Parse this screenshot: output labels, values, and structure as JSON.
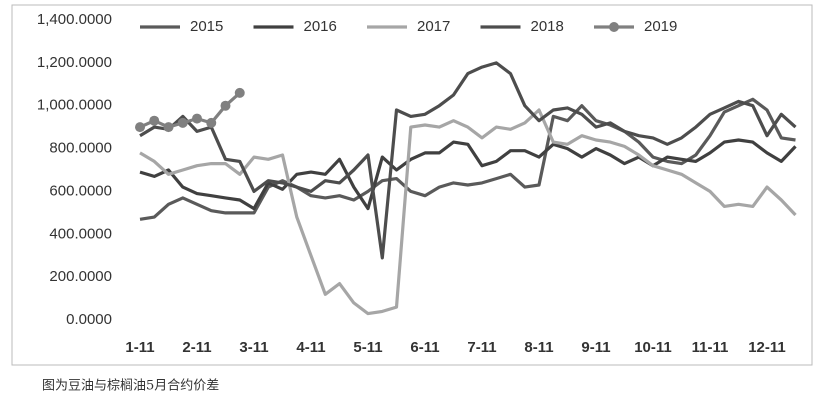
{
  "chart_data": {
    "type": "line",
    "caption": "图为豆油与棕榈油5月合约价差",
    "categories": [
      "1-11",
      null,
      null,
      null,
      "2-11",
      null,
      null,
      null,
      "3-11",
      null,
      null,
      null,
      "4-11",
      null,
      null,
      null,
      "5-11",
      null,
      null,
      null,
      "6-11",
      null,
      null,
      null,
      "7-11",
      null,
      null,
      null,
      "8-11",
      null,
      null,
      null,
      "9-11",
      null,
      null,
      null,
      "10-11",
      null,
      null,
      null,
      "11-11",
      null,
      null,
      null,
      "12-11",
      null,
      null
    ],
    "series": [
      {
        "name": "2015",
        "color": "#5a5a5a",
        "values": [
          470,
          480,
          540,
          570,
          540,
          510,
          500,
          500,
          500,
          620,
          650,
          620,
          580,
          570,
          580,
          560,
          600,
          650,
          660,
          600,
          580,
          620,
          640,
          630,
          640,
          660,
          680,
          620,
          630,
          950,
          930,
          1000,
          930,
          910,
          880,
          830,
          760,
          740,
          730,
          770,
          860,
          970,
          1000,
          1030,
          980,
          850,
          840
        ]
      },
      {
        "name": "2016",
        "color": "#404040",
        "values": [
          690,
          670,
          700,
          620,
          590,
          580,
          570,
          560,
          520,
          640,
          610,
          680,
          690,
          680,
          750,
          620,
          520,
          760,
          700,
          750,
          780,
          780,
          830,
          820,
          720,
          740,
          790,
          790,
          760,
          820,
          800,
          760,
          800,
          770,
          730,
          760,
          720,
          760,
          750,
          740,
          780,
          830,
          840,
          830,
          780,
          740,
          810
        ]
      },
      {
        "name": "2017",
        "color": "#a6a6a6",
        "values": [
          780,
          740,
          680,
          700,
          720,
          730,
          730,
          680,
          760,
          750,
          770,
          480,
          300,
          120,
          170,
          80,
          30,
          40,
          60,
          900,
          910,
          900,
          930,
          900,
          850,
          900,
          890,
          920,
          980,
          830,
          820,
          860,
          840,
          830,
          810,
          770,
          720,
          700,
          680,
          640,
          600,
          530,
          540,
          530,
          620,
          560,
          490
        ]
      },
      {
        "name": "2018",
        "color": "#4d4d4d",
        "values": [
          860,
          900,
          890,
          950,
          880,
          900,
          750,
          740,
          600,
          650,
          640,
          620,
          600,
          650,
          640,
          700,
          770,
          290,
          980,
          950,
          960,
          1000,
          1050,
          1150,
          1180,
          1200,
          1150,
          1000,
          930,
          980,
          990,
          960,
          900,
          920,
          880,
          860,
          850,
          820,
          850,
          900,
          960,
          990,
          1020,
          1000,
          860,
          960,
          900
        ]
      },
      {
        "name": "2019",
        "color": "#808080",
        "marker": "circle",
        "values": [
          900,
          930,
          900,
          920,
          940,
          920,
          1000,
          1060,
          null,
          null,
          null,
          null,
          null,
          null,
          null,
          null,
          null,
          null,
          null,
          null,
          null,
          null,
          null,
          null,
          null,
          null,
          null,
          null,
          null,
          null,
          null,
          null,
          null,
          null,
          null,
          null,
          null,
          null,
          null,
          null,
          null,
          null,
          null,
          null,
          null,
          null,
          null
        ]
      }
    ],
    "ylim": [
      0,
      1400
    ],
    "yticks": [
      {
        "value": 0,
        "label": "0.0000"
      },
      {
        "value": 200,
        "label": "200.0000"
      },
      {
        "value": 400,
        "label": "400.0000"
      },
      {
        "value": 600,
        "label": "600.0000"
      },
      {
        "value": 800,
        "label": "800.0000"
      },
      {
        "value": 1000,
        "label": "1,000.0000"
      },
      {
        "value": 1200,
        "label": "1,200.0000"
      },
      {
        "value": 1400,
        "label": "1,400.0000"
      }
    ],
    "grid": false
  }
}
